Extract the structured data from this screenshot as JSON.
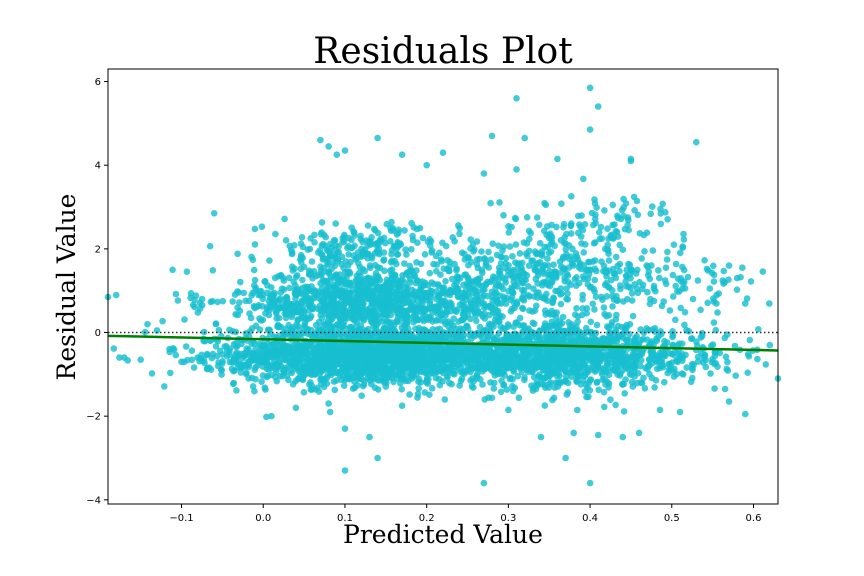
{
  "chart_data": {
    "type": "scatter",
    "title": "Residuals Plot",
    "xlabel": "Predicted Value",
    "ylabel": "Residual Value",
    "xlim": [
      -0.19,
      0.63
    ],
    "ylim": [
      -4.1,
      6.3
    ],
    "xticks": [
      -0.1,
      0.0,
      0.1,
      0.2,
      0.3,
      0.4,
      0.5,
      0.6
    ],
    "xtick_labels": [
      "−0.1",
      "0.0",
      "0.1",
      "0.2",
      "0.3",
      "0.4",
      "0.5",
      "0.6"
    ],
    "yticks": [
      -4,
      -2,
      0,
      2,
      4,
      6
    ],
    "ytick_labels": [
      "−4",
      "−2",
      "0",
      "2",
      "4",
      "6"
    ],
    "grid": false,
    "colors": {
      "points": "#17becf",
      "trend": "#008000",
      "zero_line": "#333333"
    },
    "zero_reference_line": {
      "y": 0,
      "style": "dotted"
    },
    "trend_line": {
      "x": [
        -0.19,
        0.63
      ],
      "y": [
        -0.08,
        -0.43
      ]
    },
    "point_clusters": [
      {
        "x_center": 0.12,
        "x_spread": 0.075,
        "y_center": -0.55,
        "y_spread": 0.35,
        "count": 1500
      },
      {
        "x_center": 0.12,
        "x_spread": 0.065,
        "y_center": 0.75,
        "y_spread": 0.4,
        "count": 900
      },
      {
        "x_center": 0.12,
        "x_spread": 0.06,
        "y_center": 2.0,
        "y_spread": 0.3,
        "count": 220
      },
      {
        "x_center": 0.37,
        "x_spread": 0.07,
        "y_center": -0.55,
        "y_spread": 0.38,
        "count": 1100
      },
      {
        "x_center": 0.35,
        "x_spread": 0.08,
        "y_center": 1.3,
        "y_spread": 0.45,
        "count": 420
      },
      {
        "x_center": 0.4,
        "x_spread": 0.06,
        "y_center": 2.6,
        "y_spread": 0.35,
        "count": 110
      },
      {
        "x_center": 0.25,
        "x_spread": 0.05,
        "y_center": -0.5,
        "y_spread": 0.3,
        "count": 300
      },
      {
        "x_center": 0.25,
        "x_spread": 0.05,
        "y_center": 0.7,
        "y_spread": 0.35,
        "count": 150
      },
      {
        "x_center": -0.02,
        "x_spread": 0.05,
        "y_center": -0.6,
        "y_spread": 0.3,
        "count": 110
      },
      {
        "x_center": -0.02,
        "x_spread": 0.05,
        "y_center": 0.8,
        "y_spread": 0.3,
        "count": 60
      },
      {
        "x_center": 0.53,
        "x_spread": 0.045,
        "y_center": -0.5,
        "y_spread": 0.35,
        "count": 90
      },
      {
        "x_center": 0.53,
        "x_spread": 0.045,
        "y_center": 1.0,
        "y_spread": 0.4,
        "count": 50
      }
    ],
    "outlier_points": [
      {
        "x": 0.4,
        "y": 5.85
      },
      {
        "x": 0.31,
        "y": 5.6
      },
      {
        "x": 0.41,
        "y": 5.4
      },
      {
        "x": 0.4,
        "y": 4.85
      },
      {
        "x": 0.28,
        "y": 4.7
      },
      {
        "x": 0.32,
        "y": 4.65
      },
      {
        "x": 0.14,
        "y": 4.65
      },
      {
        "x": 0.07,
        "y": 4.6
      },
      {
        "x": 0.53,
        "y": 4.55
      },
      {
        "x": 0.08,
        "y": 4.45
      },
      {
        "x": 0.09,
        "y": 4.25
      },
      {
        "x": 0.1,
        "y": 4.35
      },
      {
        "x": 0.17,
        "y": 4.25
      },
      {
        "x": 0.22,
        "y": 4.3
      },
      {
        "x": 0.45,
        "y": 4.15
      },
      {
        "x": 0.45,
        "y": 4.1
      },
      {
        "x": 0.36,
        "y": 4.15
      },
      {
        "x": 0.2,
        "y": 4.0
      },
      {
        "x": 0.27,
        "y": 3.8
      },
      {
        "x": 0.31,
        "y": 3.9
      },
      {
        "x": -0.06,
        "y": 2.85
      },
      {
        "x": -0.19,
        "y": 0.85
      },
      {
        "x": -0.17,
        "y": -0.6
      },
      {
        "x": -0.15,
        "y": -0.65
      },
      {
        "x": -0.13,
        "y": 0.05
      },
      {
        "x": -0.1,
        "y": -0.7
      },
      {
        "x": 0.63,
        "y": -1.1
      },
      {
        "x": 0.62,
        "y": -0.3
      },
      {
        "x": 0.59,
        "y": -1.95
      },
      {
        "x": 0.57,
        "y": -1.65
      },
      {
        "x": 0.58,
        "y": 1.3
      },
      {
        "x": 0.57,
        "y": 1.6
      },
      {
        "x": 0.01,
        "y": -2.0
      },
      {
        "x": 0.04,
        "y": -1.8
      },
      {
        "x": 0.1,
        "y": -2.3
      },
      {
        "x": 0.13,
        "y": -2.5
      },
      {
        "x": 0.14,
        "y": -3.0
      },
      {
        "x": 0.1,
        "y": -3.3
      },
      {
        "x": 0.27,
        "y": -3.6
      },
      {
        "x": 0.4,
        "y": -3.6
      },
      {
        "x": 0.37,
        "y": -3.0
      },
      {
        "x": 0.34,
        "y": -2.5
      },
      {
        "x": 0.38,
        "y": -2.4
      },
      {
        "x": 0.41,
        "y": -2.45
      },
      {
        "x": 0.44,
        "y": -2.5
      },
      {
        "x": 0.46,
        "y": -2.4
      },
      {
        "x": 0.3,
        "y": -1.85
      },
      {
        "x": 0.51,
        "y": -1.9
      },
      {
        "x": 0.08,
        "y": -1.7
      },
      {
        "x": 0.17,
        "y": -1.75
      }
    ]
  }
}
